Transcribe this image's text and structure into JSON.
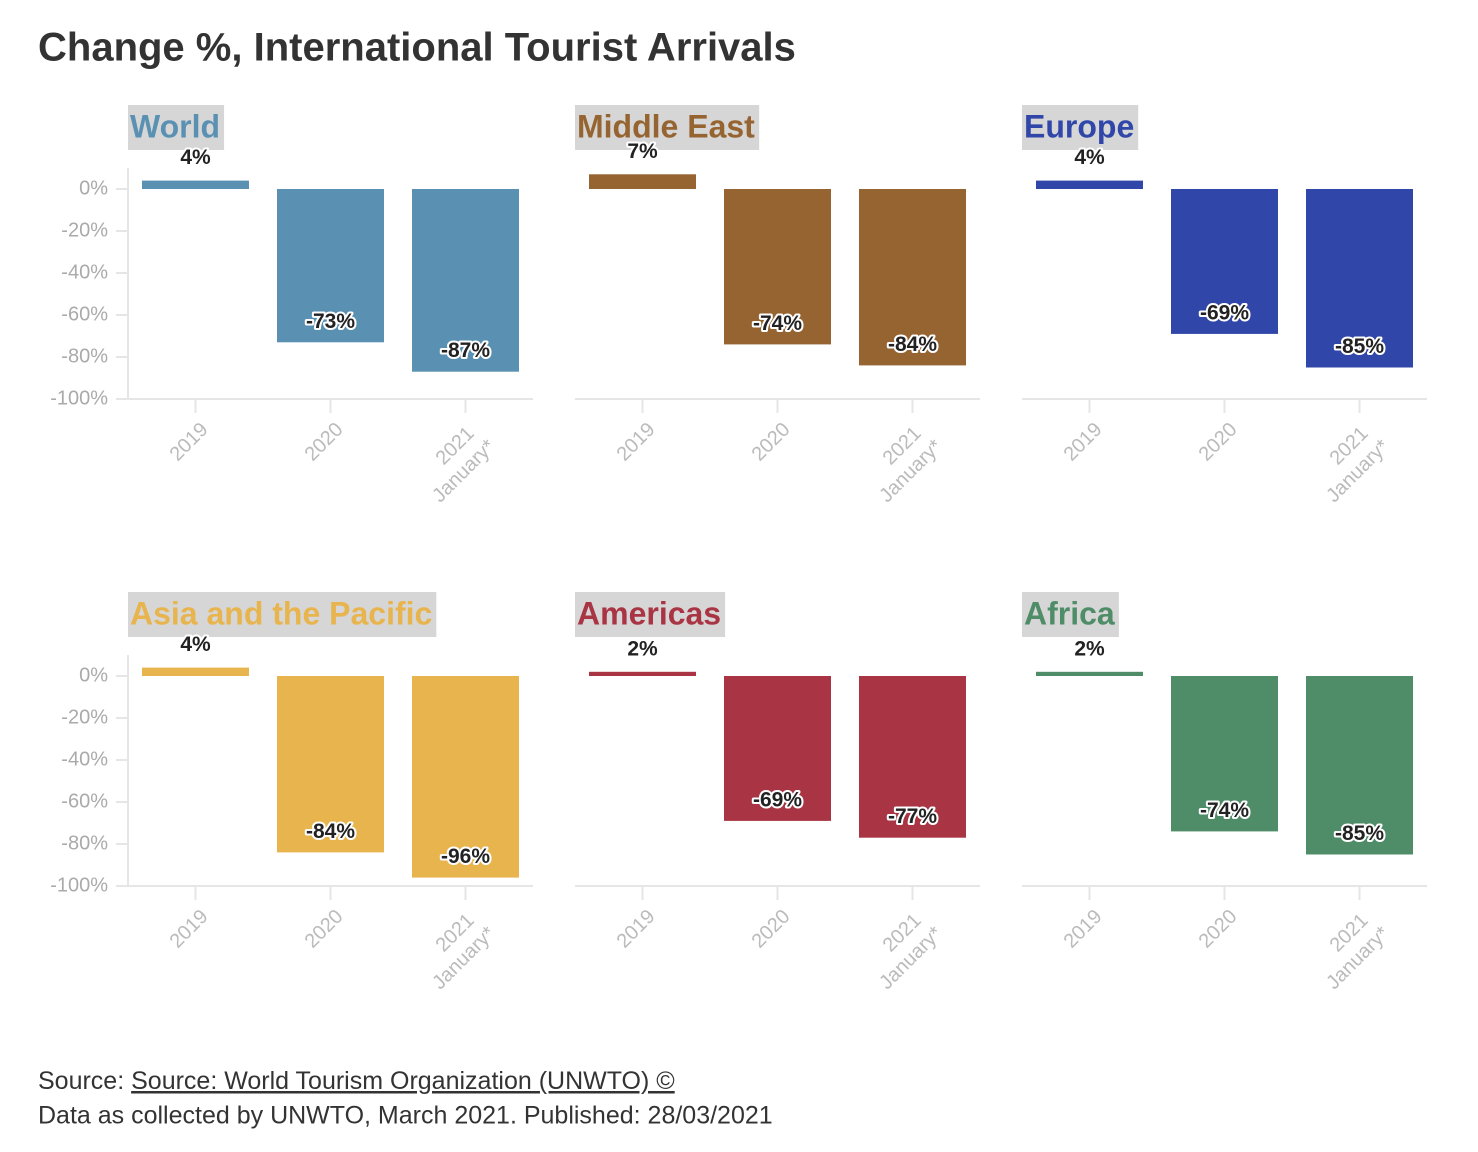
{
  "title": "Change %, International Tourist Arrivals",
  "source_label": "Source:",
  "source_link": "Source: World Tourism Organization (UNWTO) ©",
  "note": "Data as collected by UNWTO, March 2021. Published: 28/03/2021",
  "chart_data": [
    {
      "type": "bar",
      "title": "World",
      "color": "#5a91b3",
      "categories": [
        "2019",
        "2020",
        "2021 January*"
      ],
      "values": [
        4,
        -73,
        -87
      ],
      "value_labels": [
        "4%",
        "-73%",
        "-87%"
      ],
      "ylim": [
        -100,
        10
      ],
      "yticks": [
        {
          "value": 0,
          "label": "0%"
        },
        {
          "value": -20,
          "label": "-20%"
        },
        {
          "value": -40,
          "label": "-40%"
        },
        {
          "value": -60,
          "label": "-60%"
        },
        {
          "value": -80,
          "label": "-80%"
        },
        {
          "value": -100,
          "label": "-100%"
        }
      ]
    },
    {
      "type": "bar",
      "title": "Middle East",
      "color": "#966431",
      "categories": [
        "2019",
        "2020",
        "2021 January*"
      ],
      "values": [
        7,
        -74,
        -84
      ],
      "value_labels": [
        "7%",
        "-74%",
        "-84%"
      ],
      "ylim": [
        -100,
        10
      ]
    },
    {
      "type": "bar",
      "title": "Europe",
      "color": "#3046a8",
      "categories": [
        "2019",
        "2020",
        "2021 January*"
      ],
      "values": [
        4,
        -69,
        -85
      ],
      "value_labels": [
        "4%",
        "-69%",
        "-85%"
      ],
      "ylim": [
        -100,
        10
      ]
    },
    {
      "type": "bar",
      "title": "Asia and the Pacific",
      "color": "#e8b44e",
      "categories": [
        "2019",
        "2020",
        "2021 January*"
      ],
      "values": [
        4,
        -84,
        -96
      ],
      "value_labels": [
        "4%",
        "-84%",
        "-96%"
      ],
      "ylim": [
        -100,
        10
      ],
      "yticks": [
        {
          "value": 0,
          "label": "0%"
        },
        {
          "value": -20,
          "label": "-20%"
        },
        {
          "value": -40,
          "label": "-40%"
        },
        {
          "value": -60,
          "label": "-60%"
        },
        {
          "value": -80,
          "label": "-80%"
        },
        {
          "value": -100,
          "label": "-100%"
        }
      ]
    },
    {
      "type": "bar",
      "title": "Americas",
      "color": "#a93443",
      "categories": [
        "2019",
        "2020",
        "2021 January*"
      ],
      "values": [
        2,
        -69,
        -77
      ],
      "value_labels": [
        "2%",
        "-69%",
        "-77%"
      ],
      "ylim": [
        -100,
        10
      ]
    },
    {
      "type": "bar",
      "title": "Africa",
      "color": "#4f8d68",
      "categories": [
        "2019",
        "2020",
        "2021 January*"
      ],
      "values": [
        2,
        -74,
        -85
      ],
      "value_labels": [
        "2%",
        "-74%",
        "-85%"
      ],
      "ylim": [
        -100,
        10
      ]
    }
  ]
}
